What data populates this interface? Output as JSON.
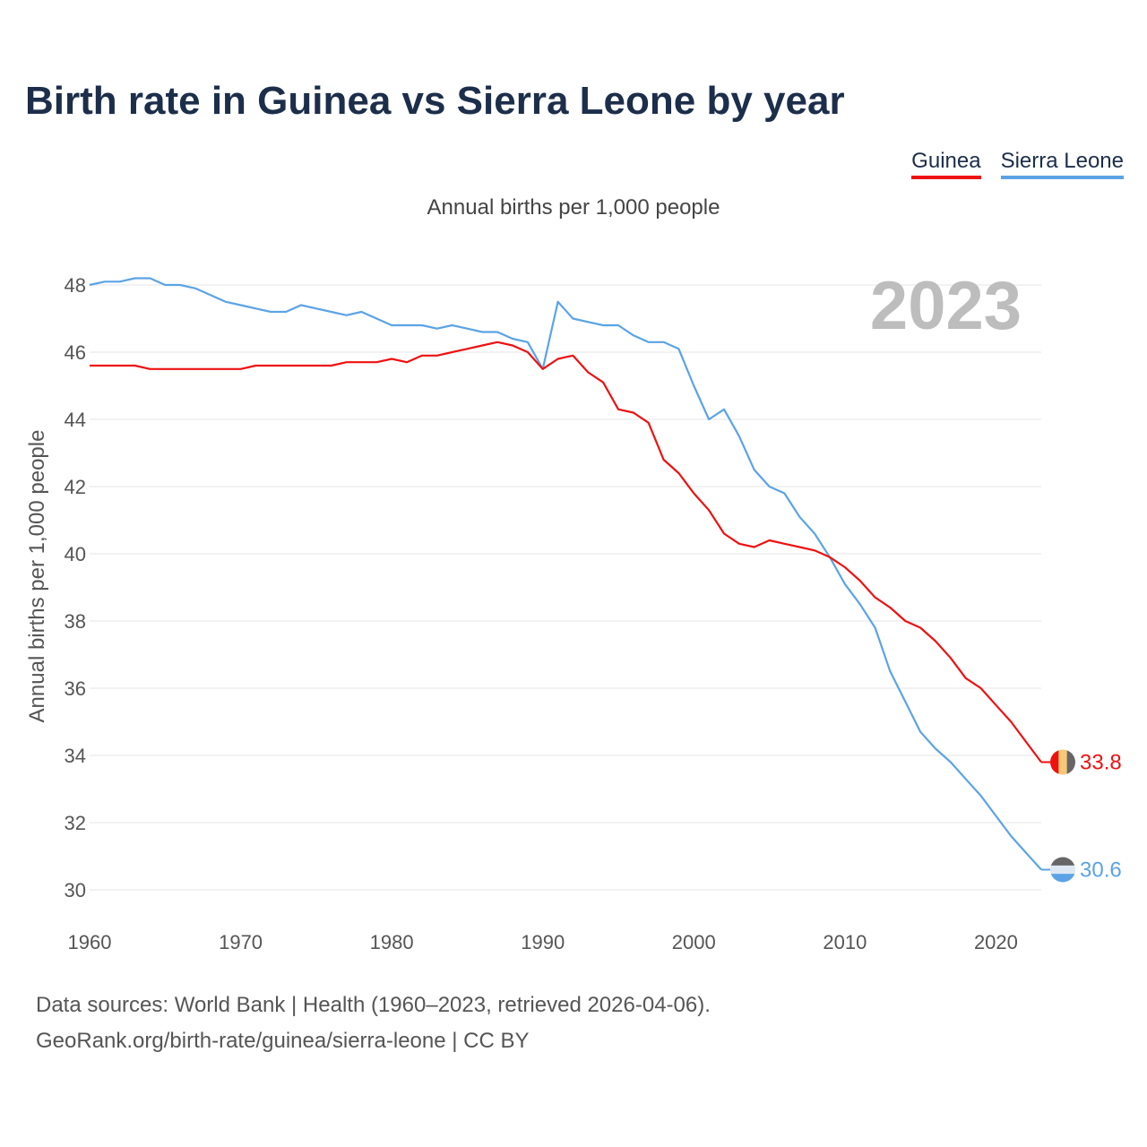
{
  "header": {
    "title": "Birth rate in Guinea vs Sierra Leone by year",
    "subtitle": "Annual births per 1,000 people",
    "year_badge": "2023"
  },
  "footer": {
    "source_line1": "Data sources: World Bank | Health (1960–2023, retrieved 2026-04-06).",
    "source_line2": "GeoRank.org/birth-rate/guinea/sierra-leone | CC BY"
  },
  "colors": {
    "guinea": "#ee1111",
    "sierra_leone": "#5ba3e6",
    "grid": "#e6e6e6",
    "title": "#1c2e4a"
  },
  "chart_data": {
    "type": "line",
    "title": "Birth rate in Guinea vs Sierra Leone by year",
    "subtitle": "Annual births per 1,000 people",
    "xlabel": "",
    "ylabel": "Annual births per 1,000 people",
    "xlim": [
      1960,
      2023
    ],
    "ylim": [
      30,
      48
    ],
    "xticks": [
      1960,
      1970,
      1980,
      1990,
      2000,
      2010,
      2020
    ],
    "yticks": [
      30,
      32,
      34,
      36,
      38,
      40,
      42,
      44,
      46,
      48
    ],
    "grid": true,
    "legend_position": "top-right",
    "x": [
      1960,
      1961,
      1962,
      1963,
      1964,
      1965,
      1966,
      1967,
      1968,
      1969,
      1970,
      1971,
      1972,
      1973,
      1974,
      1975,
      1976,
      1977,
      1978,
      1979,
      1980,
      1981,
      1982,
      1983,
      1984,
      1985,
      1986,
      1987,
      1988,
      1989,
      1990,
      1991,
      1992,
      1993,
      1994,
      1995,
      1996,
      1997,
      1998,
      1999,
      2000,
      2001,
      2002,
      2003,
      2004,
      2005,
      2006,
      2007,
      2008,
      2009,
      2010,
      2011,
      2012,
      2013,
      2014,
      2015,
      2016,
      2017,
      2018,
      2019,
      2020,
      2021,
      2022,
      2023
    ],
    "series": [
      {
        "name": "Guinea",
        "color": "#ee1111",
        "end_label": "33.8",
        "values": [
          45.6,
          45.6,
          45.6,
          45.6,
          45.5,
          45.5,
          45.5,
          45.5,
          45.5,
          45.5,
          45.5,
          45.6,
          45.6,
          45.6,
          45.6,
          45.6,
          45.6,
          45.7,
          45.7,
          45.7,
          45.8,
          45.7,
          45.9,
          45.9,
          46.0,
          46.1,
          46.2,
          46.3,
          46.2,
          46.0,
          45.5,
          45.8,
          45.9,
          45.4,
          45.1,
          44.3,
          44.2,
          43.9,
          42.8,
          42.4,
          41.8,
          41.3,
          40.6,
          40.3,
          40.2,
          40.4,
          40.3,
          40.2,
          40.1,
          39.9,
          39.6,
          39.2,
          38.7,
          38.4,
          38.0,
          37.8,
          37.4,
          36.9,
          36.3,
          36.0,
          35.5,
          35.0,
          34.4,
          33.8
        ]
      },
      {
        "name": "Sierra Leone",
        "color": "#5ba3e6",
        "end_label": "30.6",
        "values": [
          48.0,
          48.1,
          48.1,
          48.2,
          48.2,
          48.0,
          48.0,
          47.9,
          47.7,
          47.5,
          47.4,
          47.3,
          47.2,
          47.2,
          47.4,
          47.3,
          47.2,
          47.1,
          47.2,
          47.0,
          46.8,
          46.8,
          46.8,
          46.7,
          46.8,
          46.7,
          46.6,
          46.6,
          46.4,
          46.3,
          45.5,
          47.5,
          47.0,
          46.9,
          46.8,
          46.8,
          46.5,
          46.3,
          46.3,
          46.1,
          45.0,
          44.0,
          44.3,
          43.5,
          42.5,
          42.0,
          41.8,
          41.1,
          40.6,
          39.9,
          39.1,
          38.5,
          37.8,
          36.5,
          35.6,
          34.7,
          34.2,
          33.8,
          33.3,
          32.8,
          32.2,
          31.6,
          31.1,
          30.6
        ]
      }
    ]
  }
}
